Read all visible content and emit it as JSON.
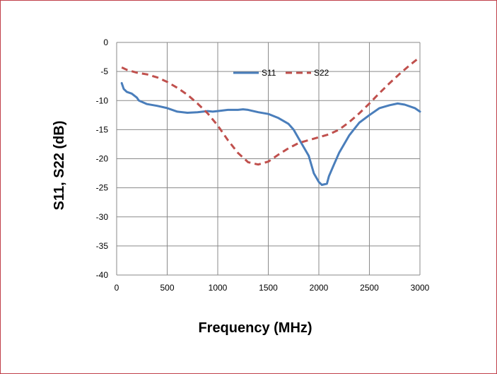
{
  "chart_data": {
    "type": "line",
    "title": "",
    "xlabel": "Frequency (MHz)",
    "ylabel": "S11, S22  (dB)",
    "xlim": [
      0,
      3000
    ],
    "ylim": [
      -40,
      0
    ],
    "x_ticks": [
      "0",
      "500",
      "1000",
      "1500",
      "2000",
      "2500",
      "3000"
    ],
    "y_ticks": [
      "0",
      "-5",
      "-10",
      "-15",
      "-20",
      "-25",
      "-30",
      "-35",
      "-40"
    ],
    "grid": true,
    "legend_position": "top-center",
    "series": [
      {
        "name": "S11",
        "color": "#4a7ebb",
        "style": "solid",
        "points": [
          [
            50,
            -7.0
          ],
          [
            70,
            -8.0
          ],
          [
            100,
            -8.5
          ],
          [
            150,
            -8.8
          ],
          [
            200,
            -9.5
          ],
          [
            220,
            -10.0
          ],
          [
            300,
            -10.6
          ],
          [
            400,
            -10.9
          ],
          [
            500,
            -11.3
          ],
          [
            600,
            -11.9
          ],
          [
            700,
            -12.1
          ],
          [
            800,
            -12.0
          ],
          [
            900,
            -11.8
          ],
          [
            950,
            -11.9
          ],
          [
            1000,
            -11.8
          ],
          [
            1100,
            -11.6
          ],
          [
            1200,
            -11.6
          ],
          [
            1250,
            -11.5
          ],
          [
            1300,
            -11.6
          ],
          [
            1400,
            -12.0
          ],
          [
            1500,
            -12.3
          ],
          [
            1600,
            -13.0
          ],
          [
            1700,
            -14.0
          ],
          [
            1750,
            -15.0
          ],
          [
            1800,
            -16.5
          ],
          [
            1900,
            -19.5
          ],
          [
            1950,
            -22.5
          ],
          [
            2000,
            -24.0
          ],
          [
            2030,
            -24.5
          ],
          [
            2080,
            -24.3
          ],
          [
            2100,
            -23.0
          ],
          [
            2150,
            -21.0
          ],
          [
            2200,
            -19.0
          ],
          [
            2300,
            -16.0
          ],
          [
            2400,
            -13.8
          ],
          [
            2500,
            -12.5
          ],
          [
            2600,
            -11.3
          ],
          [
            2700,
            -10.8
          ],
          [
            2780,
            -10.5
          ],
          [
            2850,
            -10.7
          ],
          [
            2950,
            -11.3
          ],
          [
            3000,
            -11.9
          ]
        ]
      },
      {
        "name": "S22",
        "color": "#c0504d",
        "style": "dashed",
        "points": [
          [
            50,
            -4.3
          ],
          [
            100,
            -4.7
          ],
          [
            200,
            -5.2
          ],
          [
            300,
            -5.5
          ],
          [
            400,
            -6.0
          ],
          [
            500,
            -6.8
          ],
          [
            600,
            -7.8
          ],
          [
            700,
            -9.0
          ],
          [
            800,
            -10.5
          ],
          [
            900,
            -12.2
          ],
          [
            1000,
            -14.3
          ],
          [
            1100,
            -16.8
          ],
          [
            1200,
            -19.0
          ],
          [
            1300,
            -20.6
          ],
          [
            1400,
            -21.0
          ],
          [
            1500,
            -20.5
          ],
          [
            1600,
            -19.3
          ],
          [
            1700,
            -18.2
          ],
          [
            1800,
            -17.3
          ],
          [
            1900,
            -16.8
          ],
          [
            2000,
            -16.3
          ],
          [
            2100,
            -15.8
          ],
          [
            2200,
            -15.0
          ],
          [
            2300,
            -13.7
          ],
          [
            2400,
            -12.2
          ],
          [
            2500,
            -10.5
          ],
          [
            2600,
            -8.7
          ],
          [
            2700,
            -7.0
          ],
          [
            2800,
            -5.4
          ],
          [
            2900,
            -3.9
          ],
          [
            3000,
            -2.5
          ]
        ]
      }
    ]
  }
}
